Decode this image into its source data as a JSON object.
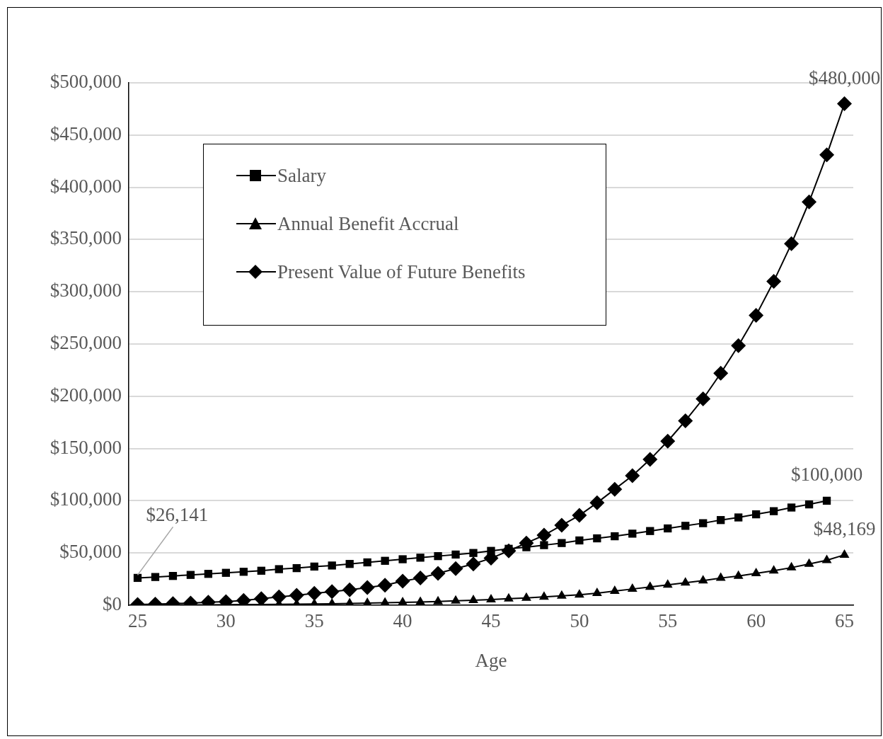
{
  "chart_data": {
    "type": "line",
    "xlabel": "Age",
    "x": [
      25,
      26,
      27,
      28,
      29,
      30,
      31,
      32,
      33,
      34,
      35,
      36,
      37,
      38,
      39,
      40,
      41,
      42,
      43,
      44,
      45,
      46,
      47,
      48,
      49,
      50,
      51,
      52,
      53,
      54,
      55,
      56,
      57,
      58,
      59,
      60,
      61,
      62,
      63,
      64,
      65
    ],
    "series": [
      {
        "name": "Salary",
        "color": "#000000",
        "marker": "square",
        "values": [
          26141,
          27000,
          28000,
          29000,
          30000,
          31000,
          32000,
          33000,
          34500,
          35500,
          37000,
          38000,
          39500,
          41000,
          42500,
          44000,
          45500,
          47000,
          48500,
          50000,
          52000,
          54000,
          55500,
          57500,
          59500,
          62000,
          64000,
          66000,
          68500,
          71000,
          73500,
          76000,
          78500,
          81500,
          84000,
          87000,
          90000,
          93500,
          96500,
          100000,
          null
        ]
      },
      {
        "name": "Annual Benefit Accrual",
        "color": "#000000",
        "marker": "triangle",
        "values": [
          150,
          200,
          250,
          300,
          400,
          500,
          600,
          700,
          850,
          1000,
          1200,
          1400,
          1700,
          2000,
          2300,
          2700,
          3100,
          3600,
          4200,
          4800,
          5500,
          6200,
          7000,
          8000,
          9000,
          10000,
          11500,
          13500,
          15500,
          17500,
          19500,
          21500,
          23500,
          26000,
          28000,
          30500,
          33000,
          36000,
          39500,
          43000,
          48169
        ]
      },
      {
        "name": "Present Value of Future Benefits",
        "color": "#000000",
        "marker": "diamond",
        "values": [
          700,
          1100,
          1600,
          2000,
          2900,
          3400,
          4500,
          6300,
          7900,
          9500,
          11300,
          13000,
          14700,
          17000,
          19200,
          23000,
          26000,
          30500,
          35000,
          39500,
          45000,
          52000,
          59500,
          67000,
          76500,
          86000,
          98000,
          111000,
          124000,
          139500,
          157000,
          176500,
          197500,
          222000,
          248500,
          277500,
          310000,
          346000,
          386000,
          431000,
          480000
        ]
      }
    ],
    "xlim": [
      24.5,
      65.5
    ],
    "xticks": [
      25,
      30,
      35,
      40,
      45,
      50,
      55,
      60,
      65
    ],
    "ylim": [
      0,
      500000
    ],
    "yticks": [
      {
        "value": 0,
        "label": "$0"
      },
      {
        "value": 50000,
        "label": "$50,000"
      },
      {
        "value": 100000,
        "label": "$100,000"
      },
      {
        "value": 150000,
        "label": "$150,000"
      },
      {
        "value": 200000,
        "label": "$200,000"
      },
      {
        "value": 250000,
        "label": "$250,000"
      },
      {
        "value": 300000,
        "label": "$300,000"
      },
      {
        "value": 350000,
        "label": "$350,000"
      },
      {
        "value": 400000,
        "label": "$400,000"
      },
      {
        "value": 450000,
        "label": "$450,000"
      },
      {
        "value": 500000,
        "label": "$500,000"
      }
    ],
    "grid": "y",
    "legend": "top left",
    "line_style": "solid",
    "annotations": [
      {
        "text": "$26,141",
        "x": 25,
        "y": 26141
      },
      {
        "text": "$100,000",
        "x": 64,
        "y": 100000
      },
      {
        "text": "$48,169",
        "x": 65,
        "y": 48169
      },
      {
        "text": "$480,000",
        "x": 65,
        "y": 480000
      }
    ]
  }
}
